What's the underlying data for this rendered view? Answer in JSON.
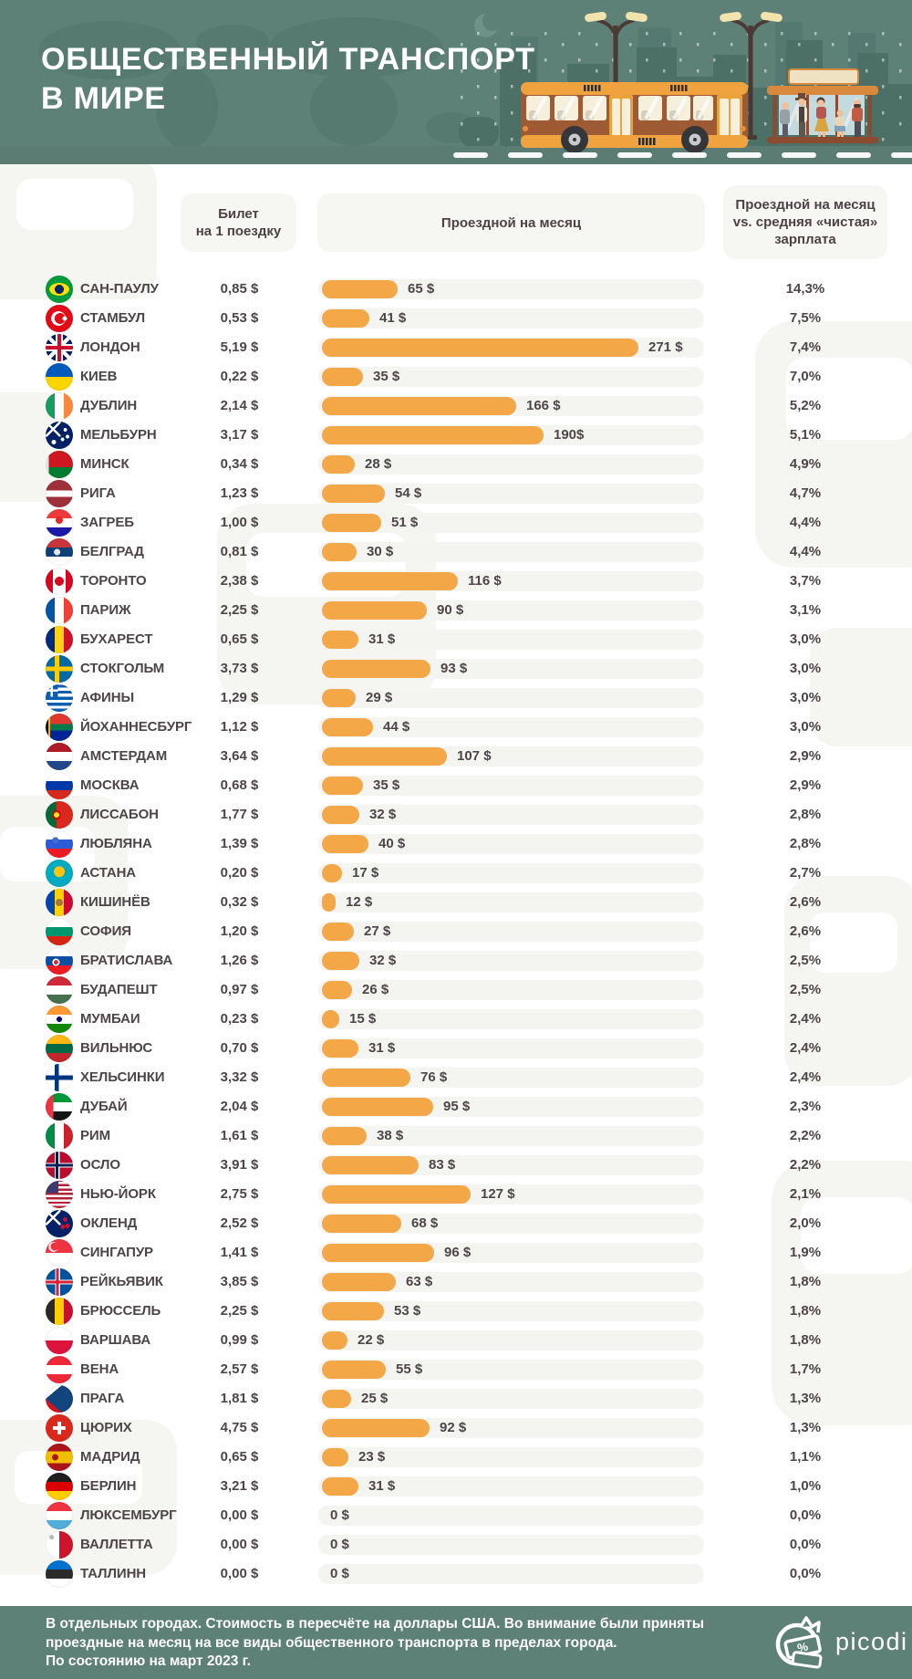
{
  "header": {
    "title_line1": "ОБЩЕСТВЕННЫЙ ТРАНСПОРТ",
    "title_line2": "В МИРЕ"
  },
  "columns": {
    "ticket_line1": "Билет",
    "ticket_line2": "на 1 поездку",
    "pass": "Проездной на месяц",
    "ratio_line1": "Проездной на месяц",
    "ratio_line2": "vs. средняя «чистая»",
    "ratio_line3": "зарплата"
  },
  "colors": {
    "bar": "#F3A747",
    "bar_track": "#F4F4F1",
    "band_teal": "#5D8077",
    "text_dark": "#4E4549"
  },
  "chart_data": {
    "type": "bar",
    "title": "Общественный транспорт в мире",
    "unit": "USD",
    "value_axis_max": 271,
    "legend": "none",
    "rows": [
      {
        "city": "САН-ПАУЛУ",
        "flag": "br",
        "ticket": "0,85 $",
        "pass": 65,
        "pass_label": "65 $",
        "percent": "14,3%"
      },
      {
        "city": "СТАМБУЛ",
        "flag": "tr",
        "ticket": "0,53 $",
        "pass": 41,
        "pass_label": "41 $",
        "percent": "7,5%"
      },
      {
        "city": "ЛОНДОН",
        "flag": "gb",
        "ticket": "5,19 $",
        "pass": 271,
        "pass_label": "271 $",
        "percent": "7,4%"
      },
      {
        "city": "КИЕВ",
        "flag": "ua",
        "ticket": "0,22 $",
        "pass": 35,
        "pass_label": "35 $",
        "percent": "7,0%"
      },
      {
        "city": "ДУБЛИН",
        "flag": "ie",
        "ticket": "2,14 $",
        "pass": 166,
        "pass_label": "166 $",
        "percent": "5,2%"
      },
      {
        "city": "МЕЛЬБУРН",
        "flag": "au",
        "ticket": "3,17 $",
        "pass": 190,
        "pass_label": "190$",
        "percent": "5,1%"
      },
      {
        "city": "МИНСК",
        "flag": "by",
        "ticket": "0,34 $",
        "pass": 28,
        "pass_label": "28 $",
        "percent": "4,9%"
      },
      {
        "city": "РИГА",
        "flag": "lv",
        "ticket": "1,23 $",
        "pass": 54,
        "pass_label": "54 $",
        "percent": "4,7%"
      },
      {
        "city": "ЗАГРЕБ",
        "flag": "hr",
        "ticket": "1,00 $",
        "pass": 51,
        "pass_label": "51 $",
        "percent": "4,4%"
      },
      {
        "city": "БЕЛГРАД",
        "flag": "rs",
        "ticket": "0,81 $",
        "pass": 30,
        "pass_label": "30 $",
        "percent": "4,4%"
      },
      {
        "city": "ТОРОНТО",
        "flag": "ca",
        "ticket": "2,38 $",
        "pass": 116,
        "pass_label": "116 $",
        "percent": "3,7%"
      },
      {
        "city": "ПАРИЖ",
        "flag": "fr",
        "ticket": "2,25 $",
        "pass": 90,
        "pass_label": "90 $",
        "percent": "3,1%"
      },
      {
        "city": "БУХАРЕСТ",
        "flag": "ro",
        "ticket": "0,65 $",
        "pass": 31,
        "pass_label": "31 $",
        "percent": "3,0%"
      },
      {
        "city": "СТОКГОЛЬМ",
        "flag": "se",
        "ticket": "3,73 $",
        "pass": 93,
        "pass_label": "93 $",
        "percent": "3,0%"
      },
      {
        "city": "АФИНЫ",
        "flag": "gr",
        "ticket": "1,29 $",
        "pass": 29,
        "pass_label": "29 $",
        "percent": "3,0%"
      },
      {
        "city": "ЙОХАННЕСБУРГ",
        "flag": "za",
        "ticket": "1,12 $",
        "pass": 44,
        "pass_label": "44 $",
        "percent": "3,0%"
      },
      {
        "city": "АМСТЕРДАМ",
        "flag": "nl",
        "ticket": "3,64 $",
        "pass": 107,
        "pass_label": "107 $",
        "percent": "2,9%"
      },
      {
        "city": "МОСКВА",
        "flag": "ru",
        "ticket": "0,68 $",
        "pass": 35,
        "pass_label": "35 $",
        "percent": "2,9%"
      },
      {
        "city": "ЛИССАБОН",
        "flag": "pt",
        "ticket": "1,77 $",
        "pass": 32,
        "pass_label": "32 $",
        "percent": "2,8%"
      },
      {
        "city": "ЛЮБЛЯНА",
        "flag": "si",
        "ticket": "1,39 $",
        "pass": 40,
        "pass_label": "40 $",
        "percent": "2,8%"
      },
      {
        "city": "АСТАНА",
        "flag": "kz",
        "ticket": "0,20 $",
        "pass": 17,
        "pass_label": "17 $",
        "percent": "2,7%"
      },
      {
        "city": "КИШИНЁВ",
        "flag": "md",
        "ticket": "0,32 $",
        "pass": 12,
        "pass_label": "12 $",
        "percent": "2,6%"
      },
      {
        "city": "СОФИЯ",
        "flag": "bg",
        "ticket": "1,20 $",
        "pass": 27,
        "pass_label": "27 $",
        "percent": "2,6%"
      },
      {
        "city": "БРАТИСЛАВА",
        "flag": "sk",
        "ticket": "1,26 $",
        "pass": 32,
        "pass_label": "32 $",
        "percent": "2,5%"
      },
      {
        "city": "БУДАПЕШТ",
        "flag": "hu",
        "ticket": "0,97 $",
        "pass": 26,
        "pass_label": "26 $",
        "percent": "2,5%"
      },
      {
        "city": "МУМБАИ",
        "flag": "in",
        "ticket": "0,23 $",
        "pass": 15,
        "pass_label": "15 $",
        "percent": "2,4%"
      },
      {
        "city": "ВИЛЬНЮС",
        "flag": "lt",
        "ticket": "0,70 $",
        "pass": 31,
        "pass_label": "31 $",
        "percent": "2,4%"
      },
      {
        "city": "ХЕЛЬСИНКИ",
        "flag": "fi",
        "ticket": "3,32 $",
        "pass": 76,
        "pass_label": "76 $",
        "percent": "2,4%"
      },
      {
        "city": "ДУБАЙ",
        "flag": "ae",
        "ticket": "2,04 $",
        "pass": 95,
        "pass_label": "95 $",
        "percent": "2,3%"
      },
      {
        "city": "РИМ",
        "flag": "it",
        "ticket": "1,61 $",
        "pass": 38,
        "pass_label": "38 $",
        "percent": "2,2%"
      },
      {
        "city": "ОСЛО",
        "flag": "no",
        "ticket": "3,91 $",
        "pass": 83,
        "pass_label": "83 $",
        "percent": "2,2%"
      },
      {
        "city": "НЬЮ-ЙОРК",
        "flag": "us",
        "ticket": "2,75 $",
        "pass": 127,
        "pass_label": "127 $",
        "percent": "2,1%"
      },
      {
        "city": "ОКЛЕНД",
        "flag": "nz",
        "ticket": "2,52 $",
        "pass": 68,
        "pass_label": "68 $",
        "percent": "2,0%"
      },
      {
        "city": "СИНГАПУР",
        "flag": "sg",
        "ticket": "1,41 $",
        "pass": 96,
        "pass_label": "96 $",
        "percent": "1,9%"
      },
      {
        "city": "РЕЙКЬЯВИК",
        "flag": "is",
        "ticket": "3,85 $",
        "pass": 63,
        "pass_label": "63 $",
        "percent": "1,8%"
      },
      {
        "city": "БРЮССЕЛЬ",
        "flag": "be",
        "ticket": "2,25 $",
        "pass": 53,
        "pass_label": "53 $",
        "percent": "1,8%"
      },
      {
        "city": "ВАРШАВА",
        "flag": "pl",
        "ticket": "0,99 $",
        "pass": 22,
        "pass_label": "22 $",
        "percent": "1,8%"
      },
      {
        "city": "ВЕНА",
        "flag": "at",
        "ticket": "2,57 $",
        "pass": 55,
        "pass_label": "55 $",
        "percent": "1,7%"
      },
      {
        "city": "ПРАГА",
        "flag": "cz",
        "ticket": "1,81 $",
        "pass": 25,
        "pass_label": "25 $",
        "percent": "1,3%"
      },
      {
        "city": "ЦЮРИХ",
        "flag": "ch",
        "ticket": "4,75 $",
        "pass": 92,
        "pass_label": "92 $",
        "percent": "1,3%"
      },
      {
        "city": "МАДРИД",
        "flag": "es",
        "ticket": "0,65 $",
        "pass": 23,
        "pass_label": "23 $",
        "percent": "1,1%"
      },
      {
        "city": "БЕРЛИН",
        "flag": "de",
        "ticket": "3,21 $",
        "pass": 31,
        "pass_label": "31 $",
        "percent": "1,0%"
      },
      {
        "city": "ЛЮКСЕМБУРГ",
        "flag": "lu",
        "ticket": "0,00 $",
        "pass": 0,
        "pass_label": "0 $",
        "percent": "0,0%"
      },
      {
        "city": "ВАЛЛЕТТА",
        "flag": "mt",
        "ticket": "0,00 $",
        "pass": 0,
        "pass_label": "0 $",
        "percent": "0,0%"
      },
      {
        "city": "ТАЛЛИНН",
        "flag": "ee",
        "ticket": "0,00 $",
        "pass": 0,
        "pass_label": "0 $",
        "percent": "0,0%"
      }
    ]
  },
  "footer": {
    "line1": "В отдельных городах. Стоимость в пересчёте на доллары США. Во внимание были приняты",
    "line2": "проездные на месяц на все виды общественного транспорта в пределах города.",
    "line3": "По состоянию на март 2023 г.",
    "brand": "picodi"
  }
}
